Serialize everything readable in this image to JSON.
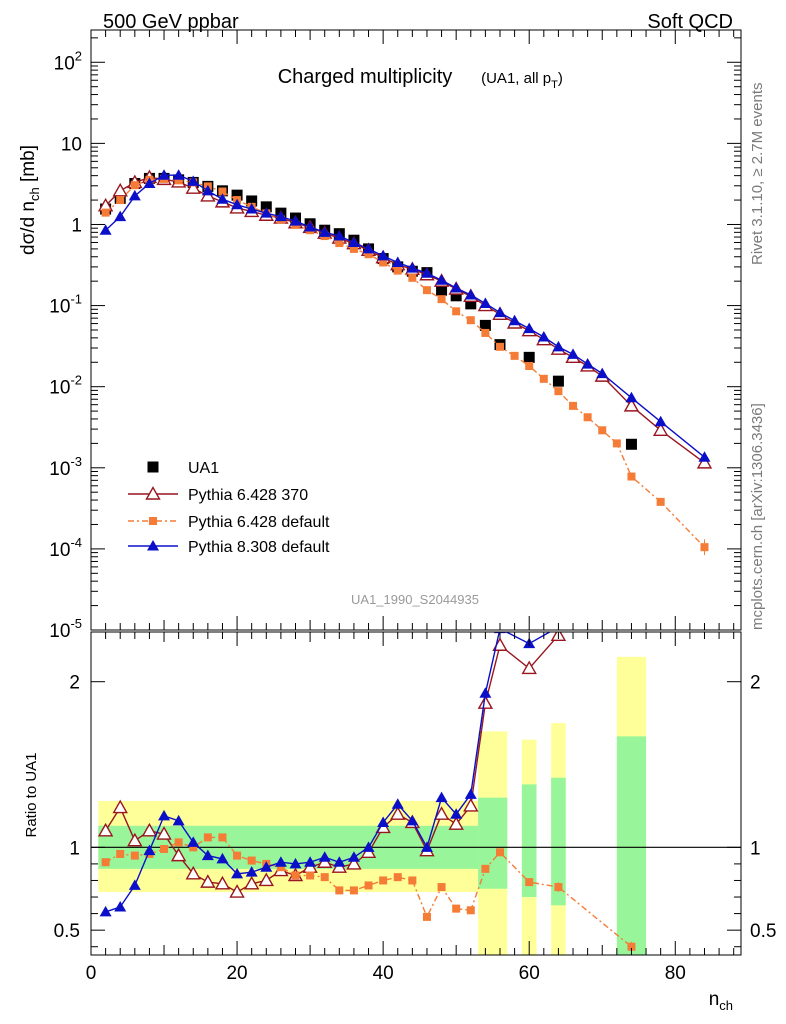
{
  "header": {
    "left": "500 GeV ppbar",
    "right": "Soft QCD"
  },
  "side_text": {
    "top": "Rivet 3.1.10, ≥ 2.7M events",
    "bottom": "mcplots.cern.ch [arXiv:1306.3436]"
  },
  "chart_data": [
    {
      "type": "scatter",
      "title": "Charged multiplicity",
      "subtitle": "(UA1, all p_T)",
      "ylabel": "dσ/d n_ch [mb]",
      "xlabel": "n_ch",
      "analysis_id": "UA1_1990_S2044935",
      "yscale": "log",
      "ylim": [
        1e-05,
        250
      ],
      "xlim": [
        0,
        89
      ],
      "ytick_labels": [
        "10^2",
        "10",
        "1",
        "10^-1",
        "10^-2",
        "10^-3",
        "10^-4",
        "10^-5"
      ],
      "legend_position": "lower-left",
      "series": [
        {
          "name": "UA1",
          "color": "#000000",
          "marker": "square",
          "x": [
            2,
            4,
            6,
            8,
            10,
            12,
            14,
            16,
            18,
            20,
            22,
            24,
            26,
            28,
            30,
            32,
            34,
            36,
            38,
            40,
            42,
            44,
            46,
            48,
            50,
            52,
            54,
            56,
            60,
            64,
            74
          ],
          "y": [
            1.55,
            2.1,
            3.2,
            3.7,
            3.7,
            3.55,
            3.3,
            2.95,
            2.6,
            2.3,
            1.95,
            1.65,
            1.38,
            1.2,
            1.02,
            0.85,
            0.77,
            0.64,
            0.5,
            0.38,
            0.3,
            0.265,
            0.255,
            0.155,
            0.132,
            0.105,
            0.057,
            0.033,
            0.023,
            0.0117,
            0.00195
          ]
        },
        {
          "name": "Pythia 6.428 370",
          "color": "#99151f",
          "marker": "triangle-open",
          "x": [
            2,
            4,
            6,
            8,
            10,
            12,
            14,
            16,
            18,
            20,
            22,
            24,
            26,
            28,
            30,
            32,
            34,
            36,
            38,
            40,
            42,
            44,
            46,
            48,
            50,
            52,
            54,
            56,
            58,
            60,
            62,
            64,
            66,
            68,
            70,
            74,
            78,
            84
          ],
          "y": [
            1.7,
            2.6,
            3.3,
            3.8,
            3.6,
            3.35,
            2.8,
            2.25,
            1.9,
            1.6,
            1.45,
            1.3,
            1.2,
            1.05,
            0.92,
            0.78,
            0.68,
            0.58,
            0.48,
            0.39,
            0.32,
            0.28,
            0.24,
            0.2,
            0.16,
            0.13,
            0.1,
            0.078,
            0.061,
            0.049,
            0.038,
            0.029,
            0.023,
            0.018,
            0.0135,
            0.0058,
            0.0029,
            0.00115
          ]
        },
        {
          "name": "Pythia 6.428 default",
          "color": "#f47c37",
          "marker": "square-small",
          "x": [
            2,
            4,
            6,
            8,
            10,
            12,
            14,
            16,
            18,
            20,
            22,
            24,
            26,
            28,
            30,
            32,
            34,
            36,
            38,
            40,
            42,
            44,
            46,
            48,
            50,
            52,
            54,
            56,
            58,
            60,
            62,
            64,
            66,
            68,
            70,
            72,
            74,
            78,
            84
          ],
          "y": [
            1.4,
            2.0,
            3.05,
            3.55,
            3.65,
            3.5,
            3.3,
            2.95,
            2.55,
            2.0,
            1.65,
            1.37,
            1.15,
            0.99,
            0.85,
            0.72,
            0.59,
            0.5,
            0.43,
            0.34,
            0.27,
            0.22,
            0.155,
            0.12,
            0.085,
            0.066,
            0.046,
            0.031,
            0.024,
            0.018,
            0.0125,
            0.0088,
            0.0058,
            0.0042,
            0.0029,
            0.002,
            0.00078,
            0.00038,
            0.000105
          ]
        },
        {
          "name": "Pythia 8.308 default",
          "color": "#0b10c8",
          "marker": "triangle-filled",
          "x": [
            2,
            4,
            6,
            8,
            10,
            12,
            14,
            16,
            18,
            20,
            22,
            24,
            26,
            28,
            30,
            32,
            34,
            36,
            38,
            40,
            42,
            44,
            46,
            48,
            50,
            52,
            54,
            56,
            58,
            60,
            62,
            64,
            66,
            68,
            70,
            74,
            78,
            84
          ],
          "y": [
            0.85,
            1.25,
            2.25,
            3.2,
            4.05,
            4.05,
            3.4,
            2.6,
            2.05,
            1.75,
            1.55,
            1.38,
            1.25,
            1.1,
            0.93,
            0.8,
            0.72,
            0.6,
            0.5,
            0.41,
            0.34,
            0.29,
            0.25,
            0.205,
            0.165,
            0.135,
            0.106,
            0.082,
            0.065,
            0.052,
            0.041,
            0.031,
            0.025,
            0.019,
            0.0145,
            0.0073,
            0.0037,
            0.00135
          ]
        }
      ]
    },
    {
      "type": "scatter",
      "ylabel": "Ratio to UA1",
      "xlabel": "n_ch",
      "ylim": [
        0.35,
        2.3
      ],
      "xlim": [
        0,
        89
      ],
      "yticks": [
        0.5,
        1,
        2
      ],
      "xticks": [
        0,
        20,
        40,
        60,
        80
      ],
      "uncertainty_bands": [
        {
          "x0": 1,
          "x1": 53,
          "stat_lo": 0.87,
          "stat_hi": 1.13,
          "tot_lo": 0.73,
          "tot_hi": 1.28
        },
        {
          "x0": 53,
          "x1": 57,
          "stat_lo": 0.75,
          "stat_hi": 1.3,
          "tot_lo": 0.35,
          "tot_hi": 1.7
        },
        {
          "x0": 59,
          "x1": 61,
          "stat_lo": 0.7,
          "stat_hi": 1.38,
          "tot_lo": 0.35,
          "tot_hi": 1.65
        },
        {
          "x0": 63,
          "x1": 65,
          "stat_lo": 0.65,
          "stat_hi": 1.42,
          "tot_lo": 0.35,
          "tot_hi": 1.75
        },
        {
          "x0": 72,
          "x1": 76,
          "stat_lo": 0.35,
          "stat_hi": 1.67,
          "tot_lo": 0.35,
          "tot_hi": 2.15
        }
      ],
      "series": [
        {
          "name": "Pythia 6.428 370",
          "color": "#99151f",
          "marker": "triangle-open",
          "x": [
            2,
            4,
            6,
            8,
            10,
            12,
            14,
            16,
            18,
            20,
            22,
            24,
            26,
            28,
            30,
            32,
            34,
            36,
            38,
            40,
            42,
            44,
            46,
            48,
            50,
            52,
            54,
            56,
            60,
            64
          ],
          "y": [
            1.1,
            1.24,
            1.04,
            1.1,
            1.08,
            0.95,
            0.84,
            0.79,
            0.78,
            0.73,
            0.78,
            0.8,
            0.86,
            0.83,
            0.88,
            0.91,
            0.88,
            0.9,
            0.97,
            1.12,
            1.2,
            1.15,
            0.98,
            1.2,
            1.14,
            1.25,
            1.87,
            2.22,
            2.08,
            2.28
          ]
        },
        {
          "name": "Pythia 6.428 default",
          "color": "#f47c37",
          "marker": "square-small",
          "x": [
            2,
            4,
            6,
            8,
            10,
            12,
            14,
            16,
            18,
            20,
            22,
            24,
            26,
            28,
            30,
            32,
            34,
            36,
            38,
            40,
            42,
            44,
            46,
            48,
            50,
            52,
            54,
            56,
            60,
            64,
            74
          ],
          "y": [
            0.91,
            0.96,
            0.95,
            0.96,
            0.99,
            1.03,
            1.0,
            1.06,
            1.06,
            0.95,
            0.92,
            0.9,
            0.88,
            0.83,
            0.83,
            0.82,
            0.74,
            0.74,
            0.77,
            0.8,
            0.82,
            0.8,
            0.58,
            0.76,
            0.63,
            0.62,
            0.87,
            0.97,
            0.79,
            0.76,
            0.4
          ]
        },
        {
          "name": "Pythia 8.308 default",
          "color": "#0b10c8",
          "marker": "triangle-filled",
          "x": [
            2,
            4,
            6,
            8,
            10,
            12,
            14,
            16,
            18,
            20,
            22,
            24,
            26,
            28,
            30,
            32,
            34,
            36,
            38,
            40,
            42,
            44,
            46,
            48,
            50,
            52,
            54,
            56,
            60,
            64
          ],
          "y": [
            0.61,
            0.64,
            0.77,
            0.98,
            1.19,
            1.16,
            1.03,
            0.95,
            0.93,
            0.84,
            0.85,
            0.88,
            0.91,
            0.9,
            0.91,
            0.94,
            0.91,
            0.94,
            1.0,
            1.15,
            1.26,
            1.16,
            1.0,
            1.3,
            1.2,
            1.32,
            1.93,
            2.32,
            2.23,
            2.33
          ]
        }
      ]
    }
  ]
}
